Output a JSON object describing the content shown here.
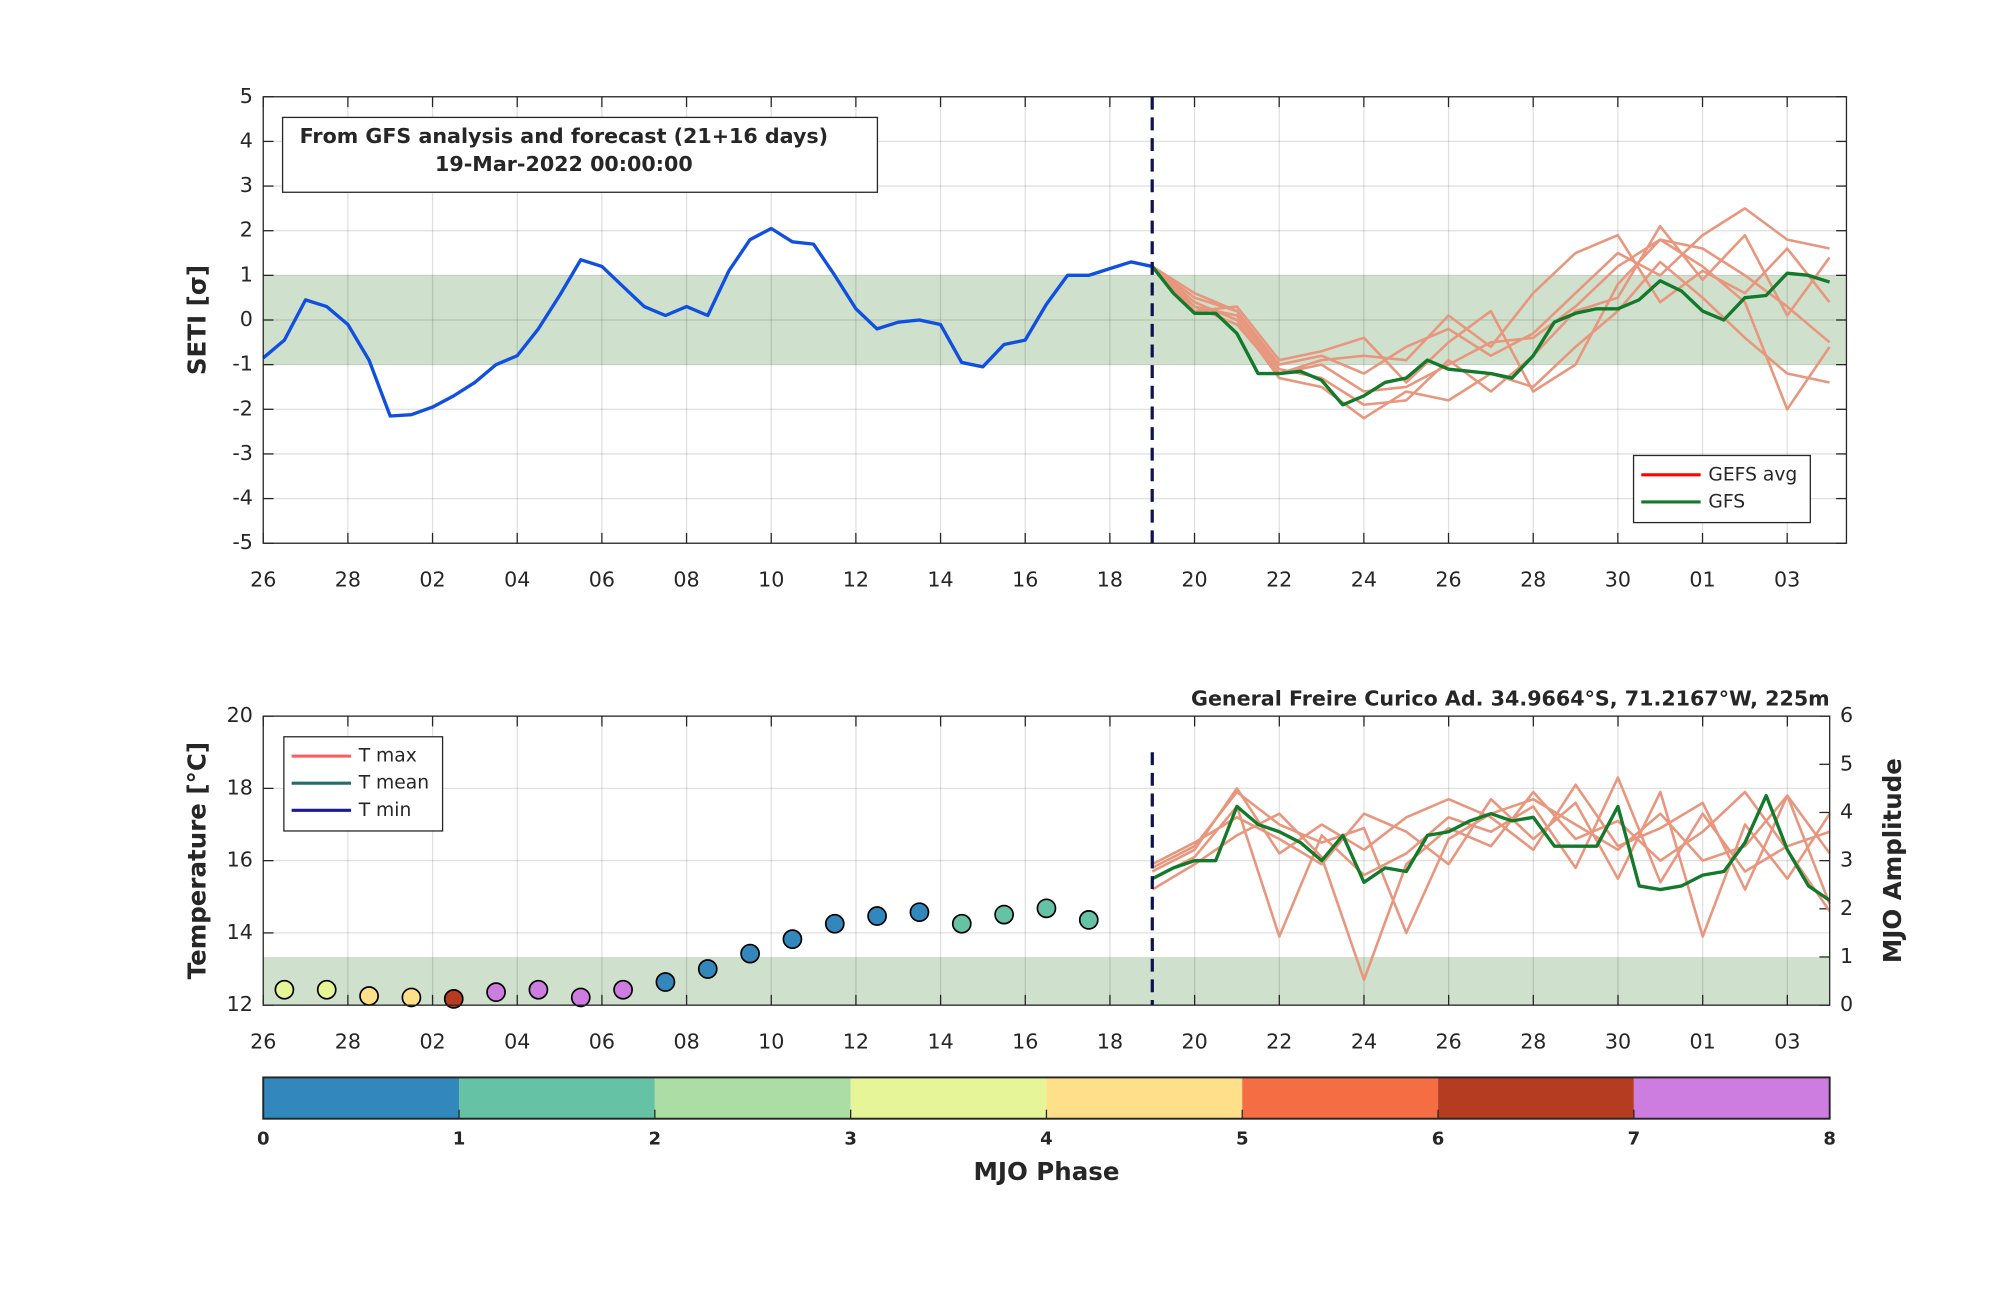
{
  "chart_data": [
    {
      "type": "line",
      "ylabel": "SETI [σ]",
      "annotation": [
        "From GFS analysis and forecast (21+16 days)",
        "19-Mar-2022 00:00:00"
      ],
      "xlim": [
        0,
        37.4
      ],
      "xticks": [
        {
          "value": 0,
          "label": "26"
        },
        {
          "value": 2,
          "label": "28"
        },
        {
          "value": 4,
          "label": "02"
        },
        {
          "value": 6,
          "label": "04"
        },
        {
          "value": 8,
          "label": "06"
        },
        {
          "value": 10,
          "label": "08"
        },
        {
          "value": 12,
          "label": "10"
        },
        {
          "value": 14,
          "label": "12"
        },
        {
          "value": 16,
          "label": "14"
        },
        {
          "value": 18,
          "label": "16"
        },
        {
          "value": 20,
          "label": "18"
        },
        {
          "value": 22,
          "label": "20"
        },
        {
          "value": 24,
          "label": "22"
        },
        {
          "value": 26,
          "label": "24"
        },
        {
          "value": 28,
          "label": "26"
        },
        {
          "value": 30,
          "label": "28"
        },
        {
          "value": 32,
          "label": "30"
        },
        {
          "value": 34,
          "label": "01"
        },
        {
          "value": 36,
          "label": "03"
        }
      ],
      "ylim": [
        -5,
        5
      ],
      "yticks": [
        -5,
        -4,
        -3,
        -2,
        -1,
        0,
        1,
        2,
        3,
        4,
        5
      ],
      "grid": true,
      "band": {
        "range": [
          -1,
          1
        ],
        "color": "#cfe0cc"
      },
      "vline": {
        "x": 21,
        "color": "#0d1250"
      },
      "legend_loc": "southeast",
      "legend": [
        {
          "name": "GEFS avg",
          "color": "#ff0000"
        },
        {
          "name": "GFS",
          "color": "#127a2a"
        }
      ],
      "series": [
        {
          "type": "line",
          "color": "#e8967d",
          "x": [
            21,
            22,
            23,
            24,
            25,
            26,
            27,
            28,
            29,
            30,
            31,
            32,
            33,
            34,
            35,
            36,
            37
          ],
          "values": [
            1.2,
            0.3,
            0.1,
            -1.2,
            -1.0,
            -1.6,
            -1.5,
            -1.0,
            -0.5,
            -0.4,
            0.3,
            1.2,
            1.8,
            1.6,
            1.0,
            0.3,
            -0.5
          ]
        },
        {
          "type": "line",
          "color": "#e8967d",
          "x": [
            21,
            22,
            23,
            24,
            25,
            26,
            27,
            28,
            29,
            30,
            31,
            32,
            33,
            34,
            35,
            36,
            37
          ],
          "values": [
            1.2,
            0.5,
            0.2,
            -1.0,
            -0.8,
            -1.2,
            -0.6,
            -0.2,
            -0.8,
            -0.3,
            0.6,
            1.5,
            1.0,
            1.9,
            2.5,
            1.8,
            1.6
          ]
        },
        {
          "type": "line",
          "color": "#e8967d",
          "x": [
            21,
            22,
            23,
            24,
            25,
            26,
            27,
            28,
            29,
            30,
            31,
            32,
            33,
            34,
            35,
            36,
            37
          ],
          "values": [
            1.2,
            0.4,
            0.0,
            -1.3,
            -1.5,
            -2.2,
            -1.6,
            -1.8,
            -1.2,
            -1.5,
            -0.6,
            0.2,
            1.3,
            0.5,
            -0.4,
            -1.2,
            -1.4
          ]
        },
        {
          "type": "line",
          "color": "#e8967d",
          "x": [
            21,
            22,
            23,
            24,
            25,
            26,
            27,
            28,
            29,
            30,
            31,
            32,
            33,
            34,
            35,
            36,
            37
          ],
          "values": [
            1.2,
            0.2,
            0.3,
            -0.9,
            -0.7,
            -0.4,
            -1.4,
            -0.5,
            0.2,
            -1.6,
            -1.0,
            0.8,
            1.8,
            1.2,
            0.4,
            -2.0,
            -0.6
          ]
        },
        {
          "type": "line",
          "color": "#e8967d",
          "x": [
            21,
            22,
            23,
            24,
            25,
            26,
            27,
            28,
            29,
            30,
            31,
            32,
            33,
            34,
            35,
            36,
            37
          ],
          "values": [
            1.2,
            0.6,
            0.2,
            -1.1,
            -1.3,
            -1.9,
            -1.8,
            -0.9,
            -1.6,
            -0.8,
            0.2,
            0.5,
            2.1,
            0.9,
            1.9,
            0.1,
            1.4
          ]
        },
        {
          "type": "line",
          "color": "#e8967d",
          "x": [
            21,
            22,
            23,
            24,
            25,
            26,
            27,
            28,
            29,
            30,
            31,
            32,
            33,
            34,
            35,
            36,
            37
          ],
          "values": [
            1.2,
            0.3,
            -0.1,
            -1.2,
            -0.9,
            -0.8,
            -0.9,
            0.1,
            -0.6,
            0.6,
            1.5,
            1.9,
            0.4,
            1.1,
            0.6,
            1.6,
            0.4
          ]
        },
        {
          "type": "line",
          "color": "#1050e0",
          "x": [
            0,
            0.5,
            1,
            1.5,
            2,
            2.5,
            3,
            3.5,
            4,
            4.5,
            5,
            5.5,
            6,
            6.5,
            7,
            7.5,
            8,
            8.5,
            9,
            9.5,
            10,
            10.5,
            11,
            11.5,
            12,
            12.5,
            13,
            13.5,
            14,
            14.5,
            15,
            15.5,
            16,
            16.5,
            17,
            17.5,
            18,
            18.5,
            19,
            19.5,
            20,
            20.5,
            21
          ],
          "values": [
            -0.85,
            -0.45,
            0.45,
            0.3,
            -0.1,
            -0.9,
            -2.15,
            -2.12,
            -1.95,
            -1.7,
            -1.4,
            -1.0,
            -0.8,
            -0.2,
            0.55,
            1.35,
            1.2,
            0.75,
            0.3,
            0.1,
            0.3,
            0.1,
            1.1,
            1.8,
            2.05,
            1.75,
            1.7,
            1.0,
            0.25,
            -0.2,
            -0.05,
            0.0,
            -0.1,
            -0.95,
            -1.05,
            -0.55,
            -0.45,
            0.35,
            1.0,
            1.0,
            1.15,
            1.3,
            1.2
          ]
        },
        {
          "type": "line",
          "color": "#127a2a",
          "x": [
            21,
            21.5,
            22,
            22.5,
            23,
            23.5,
            24,
            24.5,
            25,
            25.5,
            26,
            26.5,
            27,
            27.5,
            28,
            28.5,
            29,
            29.5,
            30,
            30.5,
            31,
            31.5,
            32,
            32.5,
            33,
            33.5,
            34,
            34.5,
            35,
            35.5,
            36,
            36.5,
            37
          ],
          "values": [
            1.2,
            0.6,
            0.15,
            0.15,
            -0.3,
            -1.2,
            -1.2,
            -1.15,
            -1.35,
            -1.9,
            -1.7,
            -1.4,
            -1.3,
            -0.9,
            -1.1,
            -1.15,
            -1.2,
            -1.3,
            -0.8,
            -0.05,
            0.15,
            0.25,
            0.25,
            0.45,
            0.88,
            0.65,
            0.2,
            0.0,
            0.5,
            0.55,
            1.05,
            1.0,
            0.85
          ]
        }
      ]
    },
    {
      "type": "line",
      "title": "General Freire Curico Ad. 34.9664°S, 71.2167°W, 225m",
      "ylabel": "Temperature [°C]",
      "y2label": "MJO Amplitude",
      "xlim": [
        0,
        37
      ],
      "xticks": [
        {
          "value": 0,
          "label": "26"
        },
        {
          "value": 2,
          "label": "28"
        },
        {
          "value": 4,
          "label": "02"
        },
        {
          "value": 6,
          "label": "04"
        },
        {
          "value": 8,
          "label": "06"
        },
        {
          "value": 10,
          "label": "08"
        },
        {
          "value": 12,
          "label": "10"
        },
        {
          "value": 14,
          "label": "12"
        },
        {
          "value": 16,
          "label": "14"
        },
        {
          "value": 18,
          "label": "16"
        },
        {
          "value": 20,
          "label": "18"
        },
        {
          "value": 22,
          "label": "20"
        },
        {
          "value": 24,
          "label": "22"
        },
        {
          "value": 26,
          "label": "24"
        },
        {
          "value": 28,
          "label": "26"
        },
        {
          "value": 30,
          "label": "28"
        },
        {
          "value": 32,
          "label": "30"
        },
        {
          "value": 34,
          "label": "01"
        },
        {
          "value": 36,
          "label": "03"
        }
      ],
      "ylim": [
        12,
        20
      ],
      "yticks": [
        12,
        14,
        16,
        18,
        20
      ],
      "y2lim": [
        0,
        6
      ],
      "y2ticks": [
        0,
        1,
        2,
        3,
        4,
        5,
        6
      ],
      "grid": true,
      "band": {
        "range": [
          0,
          1
        ],
        "axis": "y2",
        "color": "#cfe0cc"
      },
      "vline": {
        "x": 21,
        "color": "#0d1250"
      },
      "legend_loc": "northwest",
      "legend": [
        {
          "name": "T max",
          "color": "#ff5a5a"
        },
        {
          "name": "T mean",
          "color": "#1f6f6a"
        },
        {
          "name": "T min",
          "color": "#1a1a9a"
        }
      ],
      "series": [
        {
          "type": "line",
          "color": "#e8967d",
          "x": [
            21,
            22,
            23,
            24,
            25,
            26,
            27,
            28,
            29,
            30,
            31,
            32,
            33,
            34,
            35,
            36,
            37
          ],
          "values": [
            15.8,
            16.4,
            17.9,
            17.0,
            16.5,
            16.9,
            14.0,
            16.6,
            17.3,
            17.7,
            17.0,
            16.3,
            17.3,
            16.0,
            16.4,
            17.8,
            14.8
          ]
        },
        {
          "type": "line",
          "color": "#e8967d",
          "x": [
            21,
            22,
            23,
            24,
            25,
            26,
            27,
            28,
            29,
            30,
            31,
            32,
            33,
            34,
            35,
            36,
            37
          ],
          "values": [
            15.5,
            16.1,
            17.5,
            13.9,
            16.7,
            15.6,
            16.2,
            17.2,
            16.8,
            17.5,
            15.8,
            18.3,
            15.4,
            17.3,
            15.7,
            16.4,
            16.8
          ]
        },
        {
          "type": "line",
          "color": "#e8967d",
          "x": [
            21,
            22,
            23,
            24,
            25,
            26,
            27,
            28,
            29,
            30,
            31,
            32,
            33,
            34,
            35,
            36,
            37
          ],
          "values": [
            15.9,
            16.5,
            17.2,
            16.6,
            15.9,
            17.3,
            16.8,
            15.9,
            17.7,
            16.6,
            17.6,
            15.5,
            17.9,
            13.9,
            17.0,
            15.5,
            17.3
          ]
        },
        {
          "type": "line",
          "color": "#e8967d",
          "x": [
            21,
            22,
            23,
            24,
            25,
            26,
            27,
            28,
            29,
            30,
            31,
            32,
            33,
            34,
            35,
            36,
            37
          ],
          "values": [
            15.2,
            15.9,
            16.7,
            17.3,
            16.1,
            12.7,
            15.9,
            16.9,
            16.4,
            17.9,
            16.6,
            17.1,
            16.0,
            16.8,
            17.9,
            16.3,
            14.6
          ]
        },
        {
          "type": "line",
          "color": "#e8967d",
          "x": [
            21,
            22,
            23,
            24,
            25,
            26,
            27,
            28,
            29,
            30,
            31,
            32,
            33,
            34,
            35,
            36,
            37
          ],
          "values": [
            15.7,
            16.3,
            18.0,
            16.2,
            17.0,
            16.3,
            17.2,
            17.7,
            17.2,
            16.3,
            18.1,
            16.4,
            16.9,
            17.6,
            15.2,
            17.8,
            16.2
          ]
        },
        {
          "type": "line",
          "color": "#127a2a",
          "x": [
            21,
            21.5,
            22,
            22.5,
            23,
            23.5,
            24,
            24.5,
            25,
            25.5,
            26,
            26.5,
            27,
            27.5,
            28,
            28.5,
            29,
            29.5,
            30,
            30.5,
            31,
            31.5,
            32,
            32.5,
            33,
            33.5,
            34,
            34.5,
            35,
            35.5,
            36,
            36.5,
            37
          ],
          "values": [
            15.5,
            15.8,
            16.0,
            16.0,
            17.5,
            17.0,
            16.8,
            16.5,
            16.0,
            16.7,
            15.4,
            15.8,
            15.7,
            16.7,
            16.8,
            17.1,
            17.3,
            17.1,
            17.2,
            16.4,
            16.4,
            16.4,
            17.5,
            15.3,
            15.2,
            15.3,
            15.6,
            15.7,
            16.5,
            17.8,
            16.3,
            15.3,
            14.9
          ]
        },
        {
          "type": "scatter",
          "axis": "y2",
          "x": [
            0.5,
            1.5,
            2.5,
            3.5,
            4.5,
            5.5,
            6.5,
            7.5,
            8.5,
            9.5,
            10.5,
            11.5,
            12.5,
            13.5,
            14.5,
            15.5,
            16.5,
            17.5,
            18.5,
            19.5
          ],
          "values": [
            0.32,
            0.32,
            0.19,
            0.16,
            0.13,
            0.27,
            0.32,
            0.16,
            0.32,
            0.48,
            0.75,
            1.07,
            1.37,
            1.69,
            1.85,
            1.93,
            1.69,
            1.88,
            2.01,
            1.77
          ],
          "phase": [
            3.5,
            3.5,
            4.5,
            4.5,
            6.5,
            7.5,
            7.5,
            7.5,
            7.5,
            0.5,
            0.5,
            0.5,
            0.5,
            0.5,
            0.5,
            0.5,
            1.5,
            1.5,
            1.5,
            1.5
          ]
        }
      ]
    },
    {
      "type": "colorbar",
      "label": "MJO Phase",
      "lim": [
        0,
        8
      ],
      "ticks": [
        0,
        1,
        2,
        3,
        4,
        5,
        6,
        7,
        8
      ],
      "colors": [
        "#3288bd",
        "#66c2a5",
        "#abdda4",
        "#e6f598",
        "#fee08b",
        "#f46d43",
        "#b53c20",
        "#cd7de0"
      ]
    }
  ]
}
